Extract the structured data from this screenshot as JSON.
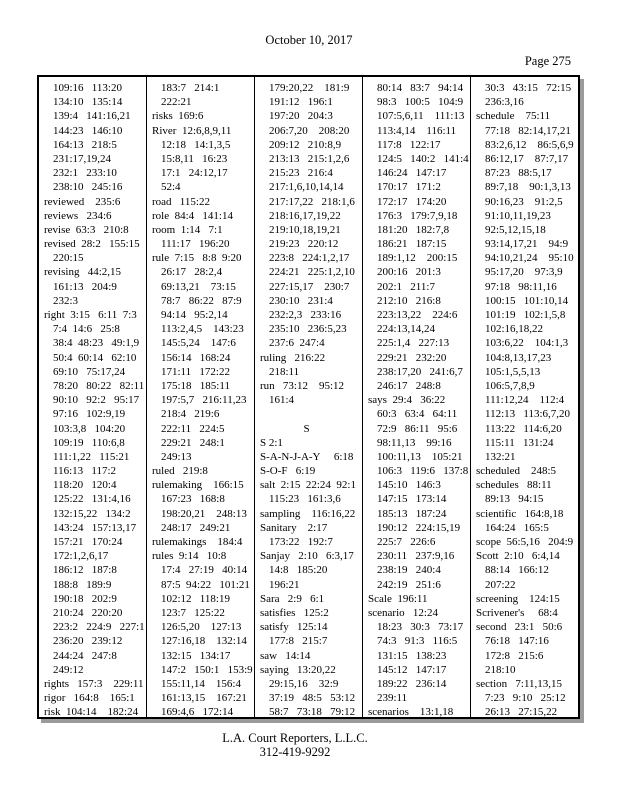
{
  "header": {
    "date": "October 10, 2017",
    "page_label": "Page 275"
  },
  "footer": {
    "company": "L.A. Court Reporters, L.L.C.",
    "phone": "312-419-9292"
  },
  "index": {
    "columns": [
      {
        "lines": [
          {
            "t": "c",
            "x": "109:16   113:20"
          },
          {
            "t": "c",
            "x": "134:10   135:14"
          },
          {
            "t": "c",
            "x": "139:4   141:16,21"
          },
          {
            "t": "c",
            "x": "144:23   146:10"
          },
          {
            "t": "c",
            "x": "164:13   218:5"
          },
          {
            "t": "c",
            "x": "231:17,19,24"
          },
          {
            "t": "c",
            "x": "232:1   233:10"
          },
          {
            "t": "c",
            "x": "238:10   245:16"
          },
          {
            "t": "w",
            "x": "reviewed    235:6"
          },
          {
            "t": "w",
            "x": "reviews   234:6"
          },
          {
            "t": "w",
            "x": "revise  63:3   210:8"
          },
          {
            "t": "w",
            "x": "revised  28:2   155:15"
          },
          {
            "t": "c",
            "x": "220:15"
          },
          {
            "t": "w",
            "x": "revising   44:2,15"
          },
          {
            "t": "c",
            "x": "161:13   204:9"
          },
          {
            "t": "c",
            "x": "232:3"
          },
          {
            "t": "w",
            "x": "right  3:15   6:11  7:3"
          },
          {
            "t": "c",
            "x": "7:4  14:6   25:8"
          },
          {
            "t": "c",
            "x": "38:4  48:23   49:1,9"
          },
          {
            "t": "c",
            "x": "50:4  60:14   62:10"
          },
          {
            "t": "c",
            "x": "69:10   75:17,24"
          },
          {
            "t": "c",
            "x": "78:20   80:22   82:11"
          },
          {
            "t": "c",
            "x": "90:10   92:2   95:17"
          },
          {
            "t": "c",
            "x": "97:16   102:9,19"
          },
          {
            "t": "c",
            "x": "103:3,8   104:20"
          },
          {
            "t": "c",
            "x": "109:19   110:6,8"
          },
          {
            "t": "c",
            "x": "111:1,22   115:21"
          },
          {
            "t": "c",
            "x": "116:13   117:2"
          },
          {
            "t": "c",
            "x": "118:20   120:4"
          },
          {
            "t": "c",
            "x": "125:22   131:4,16"
          },
          {
            "t": "c",
            "x": "132:15,22   134:2"
          },
          {
            "t": "c",
            "x": "143:24   157:13,17"
          },
          {
            "t": "c",
            "x": "157:21   170:24"
          },
          {
            "t": "c",
            "x": "172:1,2,6,17"
          },
          {
            "t": "c",
            "x": "186:12   187:8"
          },
          {
            "t": "c",
            "x": "188:8   189:9"
          },
          {
            "t": "c",
            "x": "190:18   202:9"
          },
          {
            "t": "c",
            "x": "210:24   220:20"
          },
          {
            "t": "c",
            "x": "223:2   224:9   227:1"
          },
          {
            "t": "c",
            "x": "236:20   239:12"
          },
          {
            "t": "c",
            "x": "244:24   247:8"
          },
          {
            "t": "c",
            "x": "249:12"
          },
          {
            "t": "w",
            "x": "rights   157:3    229:11"
          },
          {
            "t": "w",
            "x": "rigor   164:8    165:1"
          },
          {
            "t": "w",
            "x": "risk  104:14    182:24"
          }
        ]
      },
      {
        "lines": [
          {
            "t": "c",
            "x": "183:7   214:1"
          },
          {
            "t": "c",
            "x": "222:21"
          },
          {
            "t": "w",
            "x": "risks  169:6"
          },
          {
            "t": "w",
            "x": "River  12:6,8,9,11"
          },
          {
            "t": "c",
            "x": "12:18   14:1,3,5"
          },
          {
            "t": "c",
            "x": "15:8,11   16:23"
          },
          {
            "t": "c",
            "x": "17:1   24:12,17"
          },
          {
            "t": "c",
            "x": "52:4"
          },
          {
            "t": "w",
            "x": "road   115:22"
          },
          {
            "t": "w",
            "x": "role  84:4   141:14"
          },
          {
            "t": "w",
            "x": "room  1:14   7:1"
          },
          {
            "t": "c",
            "x": "111:17   196:20"
          },
          {
            "t": "w",
            "x": "rule  7:15   8:8  9:20"
          },
          {
            "t": "c",
            "x": "26:17   28:2,4"
          },
          {
            "t": "c",
            "x": "69:13,21    73:15"
          },
          {
            "t": "c",
            "x": "78:7   86:22   87:9"
          },
          {
            "t": "c",
            "x": "94:14   95:2,14"
          },
          {
            "t": "c",
            "x": "113:2,4,5    143:23"
          },
          {
            "t": "c",
            "x": "145:5,24    147:6"
          },
          {
            "t": "c",
            "x": "156:14   168:24"
          },
          {
            "t": "c",
            "x": "171:11   172:22"
          },
          {
            "t": "c",
            "x": "175:18   185:11"
          },
          {
            "t": "c",
            "x": "197:5,7   216:11,23"
          },
          {
            "t": "c",
            "x": "218:4   219:6"
          },
          {
            "t": "c",
            "x": "222:11   224:5"
          },
          {
            "t": "c",
            "x": "229:21   248:1"
          },
          {
            "t": "c",
            "x": "249:13"
          },
          {
            "t": "w",
            "x": "ruled   219:8"
          },
          {
            "t": "w",
            "x": "rulemaking    166:15"
          },
          {
            "t": "c",
            "x": "167:23   168:8"
          },
          {
            "t": "c",
            "x": "198:20,21    248:13"
          },
          {
            "t": "c",
            "x": "248:17   249:21"
          },
          {
            "t": "w",
            "x": "rulemakings    184:4"
          },
          {
            "t": "w",
            "x": "rules  9:14   10:8"
          },
          {
            "t": "c",
            "x": "17:4   27:19   40:14"
          },
          {
            "t": "c",
            "x": "87:5  94:22   101:21"
          },
          {
            "t": "c",
            "x": "102:12   118:19"
          },
          {
            "t": "c",
            "x": "123:7   125:22"
          },
          {
            "t": "c",
            "x": "126:5,20    127:13"
          },
          {
            "t": "c",
            "x": "127:16,18    132:14"
          },
          {
            "t": "c",
            "x": "132:15   134:17"
          },
          {
            "t": "c",
            "x": "147:2   150:1   153:9"
          },
          {
            "t": "c",
            "x": "155:11,14    156:4"
          },
          {
            "t": "c",
            "x": "161:13,15    167:21"
          },
          {
            "t": "c",
            "x": "169:4,6   172:14"
          }
        ]
      },
      {
        "lines": [
          {
            "t": "c",
            "x": "179:20,22    181:9"
          },
          {
            "t": "c",
            "x": "191:12   196:1"
          },
          {
            "t": "c",
            "x": "197:20   204:3"
          },
          {
            "t": "c",
            "x": "206:7,20    208:20"
          },
          {
            "t": "c",
            "x": "209:12   210:8,9"
          },
          {
            "t": "c",
            "x": "213:13   215:1,2,6"
          },
          {
            "t": "c",
            "x": "215:23   216:4"
          },
          {
            "t": "c",
            "x": "217:1,6,10,14,14"
          },
          {
            "t": "c",
            "x": "217:17,22   218:1,6"
          },
          {
            "t": "c",
            "x": "218:16,17,19,22"
          },
          {
            "t": "c",
            "x": "219:10,18,19,21"
          },
          {
            "t": "c",
            "x": "219:23   220:12"
          },
          {
            "t": "c",
            "x": "223:8   224:1,2,17"
          },
          {
            "t": "c",
            "x": "224:21   225:1,2,10"
          },
          {
            "t": "c",
            "x": "227:15,17    230:7"
          },
          {
            "t": "c",
            "x": "230:10   231:4"
          },
          {
            "t": "c",
            "x": "232:2,3   233:16"
          },
          {
            "t": "c",
            "x": "235:10   236:5,23"
          },
          {
            "t": "c",
            "x": "237:6  247:4"
          },
          {
            "t": "w",
            "x": "ruling   216:22"
          },
          {
            "t": "c",
            "x": "218:11"
          },
          {
            "t": "w",
            "x": "run   73:12    95:12"
          },
          {
            "t": "c",
            "x": "161:4"
          },
          {
            "t": "b",
            "x": ""
          },
          {
            "t": "h",
            "x": "S"
          },
          {
            "t": "w",
            "x": "S 2:1"
          },
          {
            "t": "w",
            "x": "S-A-N-J-A-Y     6:18"
          },
          {
            "t": "w",
            "x": "S-O-F   6:19"
          },
          {
            "t": "w",
            "x": "salt  2:15  22:24  92:1"
          },
          {
            "t": "c",
            "x": "115:23   161:3,6"
          },
          {
            "t": "w",
            "x": "sampling    116:16,22"
          },
          {
            "t": "w",
            "x": "Sanitary    2:17"
          },
          {
            "t": "c",
            "x": "173:22   192:7"
          },
          {
            "t": "w",
            "x": "Sanjay   2:10   6:3,17"
          },
          {
            "t": "c",
            "x": "14:8   185:20"
          },
          {
            "t": "c",
            "x": "196:21"
          },
          {
            "t": "w",
            "x": "Sara   2:9   6:1"
          },
          {
            "t": "w",
            "x": "satisfies   125:2"
          },
          {
            "t": "w",
            "x": "satisfy   125:14"
          },
          {
            "t": "c",
            "x": "177:8   215:7"
          },
          {
            "t": "w",
            "x": "saw   14:14"
          },
          {
            "t": "w",
            "x": "saying   13:20,22"
          },
          {
            "t": "c",
            "x": "29:15,16    32:9"
          },
          {
            "t": "c",
            "x": "37:19   48:5   53:12"
          },
          {
            "t": "c",
            "x": "58:7   73:18   79:12"
          }
        ]
      },
      {
        "lines": [
          {
            "t": "c",
            "x": "80:14   83:7   94:14"
          },
          {
            "t": "c",
            "x": "98:3   100:5   104:9"
          },
          {
            "t": "c",
            "x": "107:5,6,11    111:13"
          },
          {
            "t": "c",
            "x": "113:4,14    116:11"
          },
          {
            "t": "c",
            "x": "117:8   122:17"
          },
          {
            "t": "c",
            "x": "124:5   140:2   141:4"
          },
          {
            "t": "c",
            "x": "146:24   147:17"
          },
          {
            "t": "c",
            "x": "170:17   171:2"
          },
          {
            "t": "c",
            "x": "172:17   174:20"
          },
          {
            "t": "c",
            "x": "176:3   179:7,9,18"
          },
          {
            "t": "c",
            "x": "181:20   182:7,8"
          },
          {
            "t": "c",
            "x": "186:21   187:15"
          },
          {
            "t": "c",
            "x": "189:1,12    200:15"
          },
          {
            "t": "c",
            "x": "200:16   201:3"
          },
          {
            "t": "c",
            "x": "202:1   211:7"
          },
          {
            "t": "c",
            "x": "212:10   216:8"
          },
          {
            "t": "c",
            "x": "223:13,22    224:6"
          },
          {
            "t": "c",
            "x": "224:13,14,24"
          },
          {
            "t": "c",
            "x": "225:1,4   227:13"
          },
          {
            "t": "c",
            "x": "229:21   232:20"
          },
          {
            "t": "c",
            "x": "238:17,20   241:6,7"
          },
          {
            "t": "c",
            "x": "246:17   248:8"
          },
          {
            "t": "w",
            "x": "says  29:4   36:22"
          },
          {
            "t": "c",
            "x": "60:3   63:4   64:11"
          },
          {
            "t": "c",
            "x": "72:9   86:11   95:6"
          },
          {
            "t": "c",
            "x": "98:11,13    99:16"
          },
          {
            "t": "c",
            "x": "100:11,13    105:21"
          },
          {
            "t": "c",
            "x": "106:3   119:6   137:8"
          },
          {
            "t": "c",
            "x": "145:10   146:3"
          },
          {
            "t": "c",
            "x": "147:15   173:14"
          },
          {
            "t": "c",
            "x": "185:13   187:24"
          },
          {
            "t": "c",
            "x": "190:12   224:15,19"
          },
          {
            "t": "c",
            "x": "225:7   226:6"
          },
          {
            "t": "c",
            "x": "230:11   237:9,16"
          },
          {
            "t": "c",
            "x": "238:19   240:4"
          },
          {
            "t": "c",
            "x": "242:19   251:6"
          },
          {
            "t": "w",
            "x": "Scale  196:11"
          },
          {
            "t": "w",
            "x": "scenario   12:24"
          },
          {
            "t": "c",
            "x": "18:23   30:3   73:17"
          },
          {
            "t": "c",
            "x": "74:3   91:3   116:5"
          },
          {
            "t": "c",
            "x": "131:15   138:23"
          },
          {
            "t": "c",
            "x": "145:12   147:17"
          },
          {
            "t": "c",
            "x": "189:22   236:14"
          },
          {
            "t": "c",
            "x": "239:11"
          },
          {
            "t": "w",
            "x": "scenarios    13:1,18"
          }
        ]
      },
      {
        "lines": [
          {
            "t": "c",
            "x": "30:3   43:15   72:15"
          },
          {
            "t": "c",
            "x": "236:3,16"
          },
          {
            "t": "w",
            "x": "schedule    75:11"
          },
          {
            "t": "c",
            "x": "77:18   82:14,17,21"
          },
          {
            "t": "c",
            "x": "83:2,6,12    86:5,6,9"
          },
          {
            "t": "c",
            "x": "86:12,17    87:7,17"
          },
          {
            "t": "c",
            "x": "87:23   88:5,17"
          },
          {
            "t": "c",
            "x": "89:7,18    90:1,3,13"
          },
          {
            "t": "c",
            "x": "90:16,23    91:2,5"
          },
          {
            "t": "c",
            "x": "91:10,11,19,23"
          },
          {
            "t": "c",
            "x": "92:5,12,15,18"
          },
          {
            "t": "c",
            "x": "93:14,17,21    94:9"
          },
          {
            "t": "c",
            "x": "94:10,21,24    95:10"
          },
          {
            "t": "c",
            "x": "95:17,20    97:3,9"
          },
          {
            "t": "c",
            "x": "97:18   98:11,16"
          },
          {
            "t": "c",
            "x": "100:15   101:10,14"
          },
          {
            "t": "c",
            "x": "101:19   102:1,5,8"
          },
          {
            "t": "c",
            "x": "102:16,18,22"
          },
          {
            "t": "c",
            "x": "103:6,22    104:1,3"
          },
          {
            "t": "c",
            "x": "104:8,13,17,23"
          },
          {
            "t": "c",
            "x": "105:1,5,5,13"
          },
          {
            "t": "c",
            "x": "106:5,7,8,9"
          },
          {
            "t": "c",
            "x": "111:12,24    112:4"
          },
          {
            "t": "c",
            "x": "112:13   113:6,7,20"
          },
          {
            "t": "c",
            "x": "113:22   114:6,20"
          },
          {
            "t": "c",
            "x": "115:11   131:24"
          },
          {
            "t": "c",
            "x": "132:21"
          },
          {
            "t": "w",
            "x": "scheduled    248:5"
          },
          {
            "t": "w",
            "x": "schedules   88:11"
          },
          {
            "t": "c",
            "x": "89:13   94:15"
          },
          {
            "t": "w",
            "x": "scientific   164:8,18"
          },
          {
            "t": "c",
            "x": "164:24   165:5"
          },
          {
            "t": "w",
            "x": "scope  56:5,16   204:9"
          },
          {
            "t": "w",
            "x": "Scott  2:10   6:4,14"
          },
          {
            "t": "c",
            "x": "88:14   166:12"
          },
          {
            "t": "c",
            "x": "207:22"
          },
          {
            "t": "w",
            "x": "screening    124:15"
          },
          {
            "t": "w",
            "x": "Scrivener's     68:4"
          },
          {
            "t": "w",
            "x": "second   23:1   50:6"
          },
          {
            "t": "c",
            "x": "76:18   147:16"
          },
          {
            "t": "c",
            "x": "172:8   215:6"
          },
          {
            "t": "c",
            "x": "218:10"
          },
          {
            "t": "w",
            "x": "section   7:11,13,15"
          },
          {
            "t": "c",
            "x": "7:23   9:10   25:12"
          },
          {
            "t": "c",
            "x": "26:13   27:15,22"
          }
        ]
      }
    ]
  }
}
